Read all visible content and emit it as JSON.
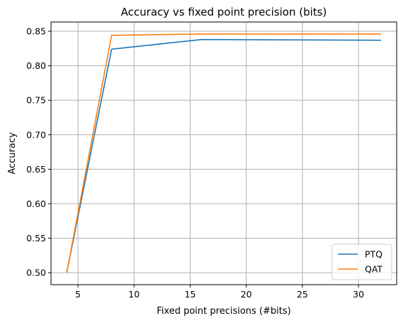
{
  "chart_data": {
    "type": "line",
    "title": "Accuracy vs fixed point precision (bits)",
    "xlabel": "Fixed point precisions (#bits)",
    "ylabel": "Accuracy",
    "xlim": [
      2.6,
      33.4
    ],
    "ylim": [
      0.4827,
      0.8634
    ],
    "xticks": [
      5,
      10,
      15,
      20,
      25,
      30
    ],
    "yticks": [
      0.5,
      0.55,
      0.6,
      0.65,
      0.7,
      0.75,
      0.8,
      0.85
    ],
    "xtick_labels": [
      "5",
      "10",
      "15",
      "20",
      "25",
      "30"
    ],
    "ytick_labels": [
      "0.50",
      "0.55",
      "0.60",
      "0.65",
      "0.70",
      "0.75",
      "0.80",
      "0.85"
    ],
    "x": [
      4,
      8,
      16,
      32
    ],
    "series": [
      {
        "name": "PTQ",
        "color": "#1f77b4",
        "values": [
          0.5,
          0.824,
          0.838,
          0.837
        ]
      },
      {
        "name": "QAT",
        "color": "#ff7f0e",
        "values": [
          0.5,
          0.844,
          0.846,
          0.846
        ]
      }
    ],
    "grid": true,
    "legend_position": "lower-right"
  }
}
